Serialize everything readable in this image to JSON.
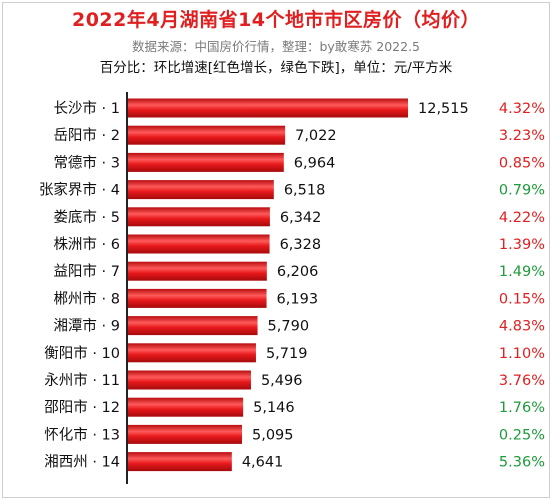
{
  "chart_data": {
    "type": "bar",
    "orientation": "horizontal",
    "title": "2022年4月湖南省14个地市市区房价（均价）",
    "subtitle": "数据来源：中国房价行情，整理：by敢寒苏 2022.5",
    "note": "百分比：环比增速[红色增长，绿色下跌]，单位：元/平方米",
    "categories": [
      "长沙市 · 1",
      "岳阳市 · 2",
      "常德市 · 3",
      "张家界市 · 4",
      "娄底市 · 5",
      "株洲市 · 6",
      "益阳市 · 7",
      "郴州市 · 8",
      "湘潭市 · 9",
      "衡阳市 · 10",
      "永州市 · 11",
      "邵阳市 · 12",
      "怀化市 · 13",
      "湘西州 · 14"
    ],
    "values": [
      12515,
      7022,
      6964,
      6518,
      6342,
      6328,
      6206,
      6193,
      5790,
      5719,
      5496,
      5146,
      5095,
      4641
    ],
    "value_labels": [
      "12,515",
      "7,022",
      "6,964",
      "6,518",
      "6,342",
      "6,328",
      "6,206",
      "6,193",
      "5,790",
      "5,719",
      "5,496",
      "5,146",
      "5,095",
      "4,641"
    ],
    "change_labels": [
      "4.32%",
      "3.23%",
      "0.85%",
      "0.79%",
      "4.22%",
      "1.39%",
      "1.49%",
      "0.15%",
      "4.83%",
      "1.10%",
      "3.76%",
      "1.76%",
      "0.25%",
      "5.36%"
    ],
    "change_direction": [
      "up",
      "up",
      "up",
      "down",
      "up",
      "up",
      "down",
      "up",
      "up",
      "up",
      "up",
      "down",
      "down",
      "down"
    ],
    "colors": {
      "bar": "#e8191c",
      "bar_highlight": "#ff6a6a",
      "up": "#e02020",
      "down": "#1f9a3a",
      "title": "#e02020"
    },
    "xlim": [
      0,
      12515
    ],
    "grid": false,
    "legend": "none"
  }
}
